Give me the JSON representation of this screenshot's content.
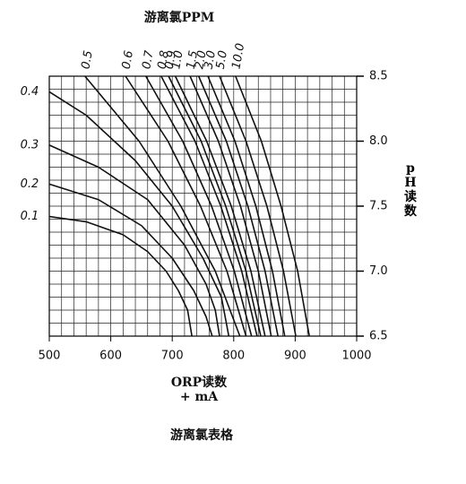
{
  "chart_data": {
    "type": "line",
    "title": "游离氯PPM",
    "xlabel": "ORP读数",
    "xlabel_unit": "+ mA",
    "ylabel": "pH读数",
    "footer": "游离氯表格",
    "xlim": [
      500,
      1000
    ],
    "xticks": [
      500,
      600,
      700,
      800,
      900,
      1000
    ],
    "ylim": [
      6.5,
      8.5
    ],
    "yticks": [
      6.5,
      {
        "value": 7,
        "label": "7.0"
      },
      7.5,
      {
        "value": 8,
        "label": "8.0"
      },
      8.5
    ],
    "grid": true,
    "color": "#111111",
    "series": [
      {
        "name": "0.1",
        "x": [
          500,
          560,
          620,
          660,
          690,
          710,
          725,
          732
        ],
        "values": [
          7.42,
          7.38,
          7.28,
          7.15,
          7.0,
          6.85,
          6.7,
          6.5
        ]
      },
      {
        "name": "0.2",
        "x": [
          500,
          580,
          650,
          700,
          735,
          755,
          765
        ],
        "values": [
          7.67,
          7.55,
          7.35,
          7.1,
          6.85,
          6.65,
          6.5
        ]
      },
      {
        "name": "0.3",
        "x": [
          500,
          580,
          660,
          720,
          755,
          770,
          777
        ],
        "values": [
          7.97,
          7.8,
          7.55,
          7.2,
          6.9,
          6.7,
          6.5
        ]
      },
      {
        "name": "0.4",
        "x": [
          500,
          560,
          640,
          700,
          750,
          780,
          792
        ],
        "values": [
          8.38,
          8.2,
          7.85,
          7.5,
          7.1,
          6.8,
          6.5
        ]
      },
      {
        "name": "0.5",
        "x": [
          558,
          646,
          714,
          770,
          810
        ],
        "values": [
          8.5,
          8.0,
          7.5,
          7.0,
          6.5
        ]
      },
      {
        "name": "0.6",
        "x": [
          624,
          693,
          746,
          789,
          820
        ],
        "values": [
          8.5,
          8.0,
          7.5,
          7.0,
          6.5
        ]
      },
      {
        "name": "0.7",
        "x": [
          657,
          717,
          764,
          801,
          829
        ],
        "values": [
          8.5,
          8.0,
          7.5,
          7.0,
          6.5
        ]
      },
      {
        "name": "0.8",
        "x": [
          682,
          737,
          779,
          813,
          838
        ],
        "values": [
          8.5,
          8.0,
          7.5,
          7.0,
          6.5
        ]
      },
      {
        "name": "0.9",
        "x": [
          694,
          747,
          787,
          820,
          844
        ],
        "values": [
          8.5,
          8.0,
          7.5,
          7.0,
          6.5
        ]
      },
      {
        "name": "1.0",
        "x": [
          705,
          756,
          796,
          828,
          851
        ],
        "values": [
          8.5,
          8.0,
          7.5,
          7.0,
          6.5
        ]
      },
      {
        "name": "1.5",
        "x": [
          729,
          775,
          811,
          840,
          861
        ],
        "values": [
          8.5,
          8.0,
          7.5,
          7.0,
          6.5
        ]
      },
      {
        "name": "2.0",
        "x": [
          743,
          788,
          823,
          851,
          872
        ],
        "values": [
          8.5,
          8.0,
          7.5,
          7.0,
          6.5
        ]
      },
      {
        "name": "3.0",
        "x": [
          758,
          802,
          836,
          863,
          883
        ],
        "values": [
          8.5,
          8.0,
          7.5,
          7.0,
          6.5
        ]
      },
      {
        "name": "5.0",
        "x": [
          777,
          820,
          854,
          881,
          901
        ],
        "values": [
          8.5,
          8.0,
          7.5,
          7.0,
          6.5
        ]
      },
      {
        "name": "10.0",
        "x": [
          803,
          845,
          877,
          904,
          923
        ],
        "values": [
          8.5,
          8.0,
          7.5,
          7.0,
          6.5
        ]
      }
    ]
  }
}
